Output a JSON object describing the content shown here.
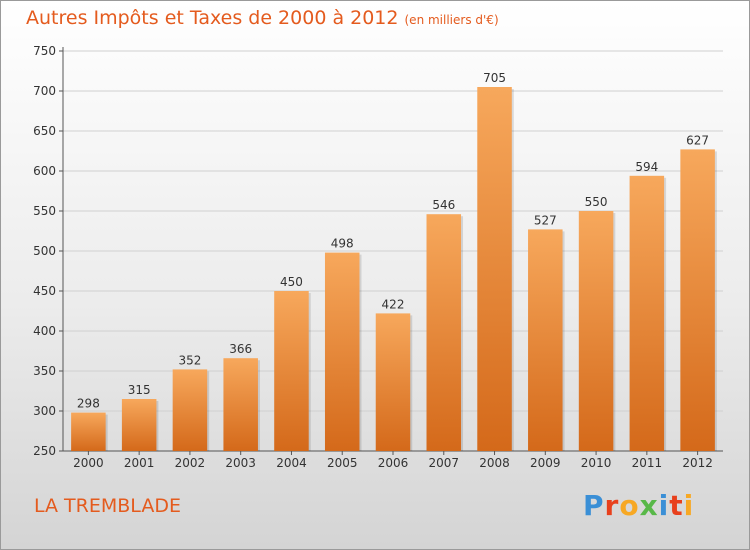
{
  "title": "Autres Impôts et Taxes de 2000 à 2012",
  "subtitle": "(en milliers d'€)",
  "commune": "LA TREMBLADE",
  "logo": {
    "text": "Proxiti",
    "colors": [
      "#3a8fd6",
      "#e8401c",
      "#f7a823",
      "#58b848",
      "#3a8fd6",
      "#e8401c",
      "#f7a823"
    ]
  },
  "chart_data": {
    "type": "bar",
    "categories": [
      "2000",
      "2001",
      "2002",
      "2003",
      "2004",
      "2005",
      "2006",
      "2007",
      "2008",
      "2009",
      "2010",
      "2011",
      "2012"
    ],
    "values": [
      298,
      315,
      352,
      366,
      450,
      498,
      422,
      546,
      705,
      527,
      550,
      594,
      627
    ],
    "ylim": [
      250,
      750
    ],
    "yticks": [
      250,
      300,
      350,
      400,
      450,
      500,
      550,
      600,
      650,
      700,
      750
    ],
    "grid": true,
    "bar_color_top": "#f7a85c",
    "bar_color_bottom": "#d4691a"
  }
}
